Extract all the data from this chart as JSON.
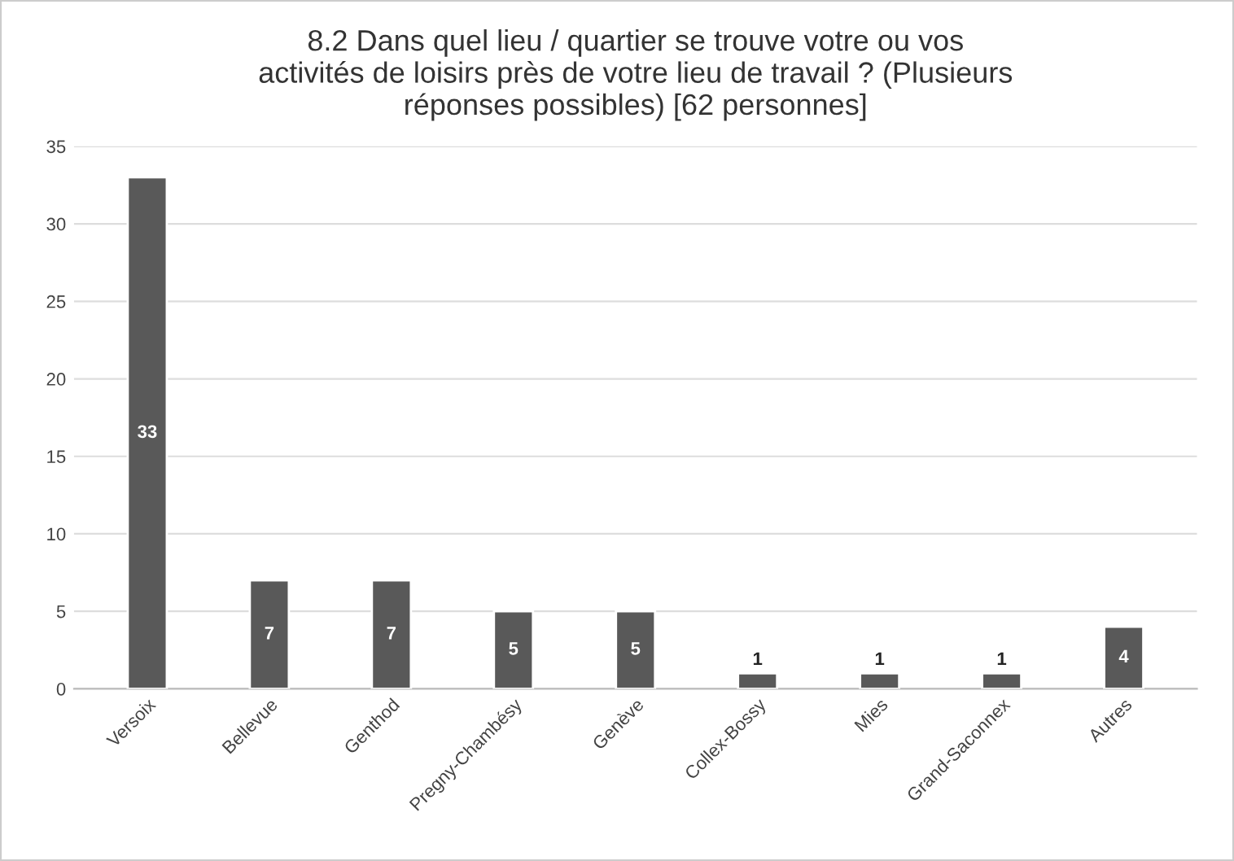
{
  "chart_data": {
    "type": "bar",
    "title": "8.2 Dans quel lieu / quartier se trouve votre ou vos\nactivités de loisirs près de votre lieu de travail ? (Plusieurs\nréponses possibles) [62 personnes]",
    "categories": [
      "Versoix",
      "Bellevue",
      "Genthod",
      "Pregny-Chambésy",
      "Genève",
      "Collex-Bossy",
      "Mies",
      "Grand-Saconnex",
      "Autres"
    ],
    "values": [
      33,
      7,
      7,
      5,
      5,
      1,
      1,
      1,
      4
    ],
    "color": "#595959",
    "ylim": [
      0,
      35
    ],
    "yticks": [
      0,
      5,
      10,
      15,
      20,
      25,
      30,
      35
    ],
    "grid": "y",
    "data_labels": true
  }
}
